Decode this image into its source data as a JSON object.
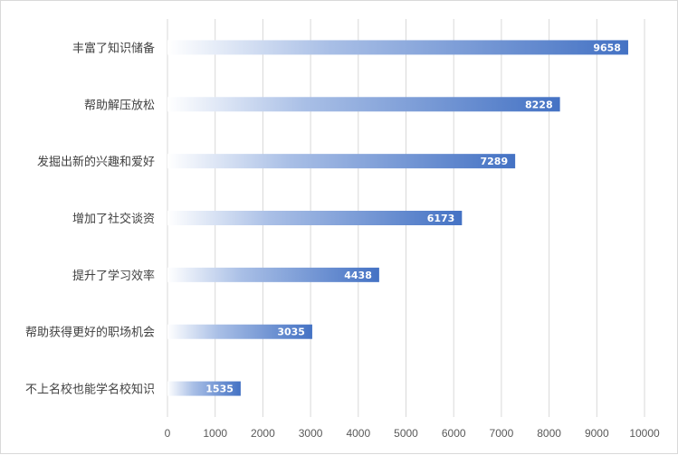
{
  "chart_data": {
    "type": "bar",
    "orientation": "horizontal",
    "categories": [
      "丰富了知识储备",
      "帮助解压放松",
      "发掘出新的兴趣和爱好",
      "增加了社交谈资",
      "提升了学习效率",
      "帮助获得更好的职场机会",
      "不上名校也能学名校知识"
    ],
    "values": [
      9658,
      8228,
      7289,
      6173,
      4438,
      3035,
      1535
    ],
    "xlim": [
      0,
      10000
    ],
    "x_ticks": [
      "0",
      "1000",
      "2000",
      "3000",
      "4000",
      "5000",
      "6000",
      "7000",
      "8000",
      "9000",
      "10000"
    ],
    "grid": "vertical",
    "legend": "none",
    "data_labels": "inside-end",
    "colors": {
      "bar_start": "#ffffff",
      "bar_end": "#4472c4",
      "grid": "#d9d9d9",
      "label": "#404040"
    }
  }
}
